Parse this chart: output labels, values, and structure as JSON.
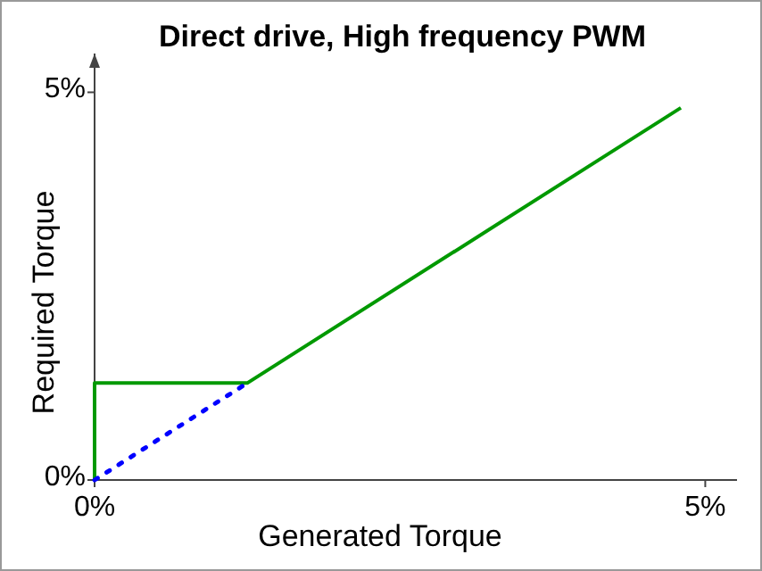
{
  "chart_data": {
    "type": "line",
    "title": "Direct drive, High frequency PWM",
    "xlabel": "Generated Torque",
    "ylabel": "Required Torque",
    "xlim": [
      0,
      5.26
    ],
    "ylim": [
      0,
      5.5
    ],
    "xticks": [
      {
        "value": 0,
        "label": "0%"
      },
      {
        "value": 5,
        "label": "5%"
      }
    ],
    "yticks": [
      {
        "value": 0,
        "label": "0%"
      },
      {
        "value": 5,
        "label": "5%"
      }
    ],
    "series": [
      {
        "color": "#009900",
        "x": [
          0,
          0,
          1.25,
          4.8
        ],
        "values": [
          0,
          1.25,
          1.25,
          4.8
        ],
        "line_style": "solid"
      },
      {
        "color": "#0000ff",
        "x": [
          0,
          1.25
        ],
        "values": [
          0,
          1.25
        ],
        "line_style": "dotted"
      }
    ],
    "grid": false,
    "marker": "none"
  }
}
